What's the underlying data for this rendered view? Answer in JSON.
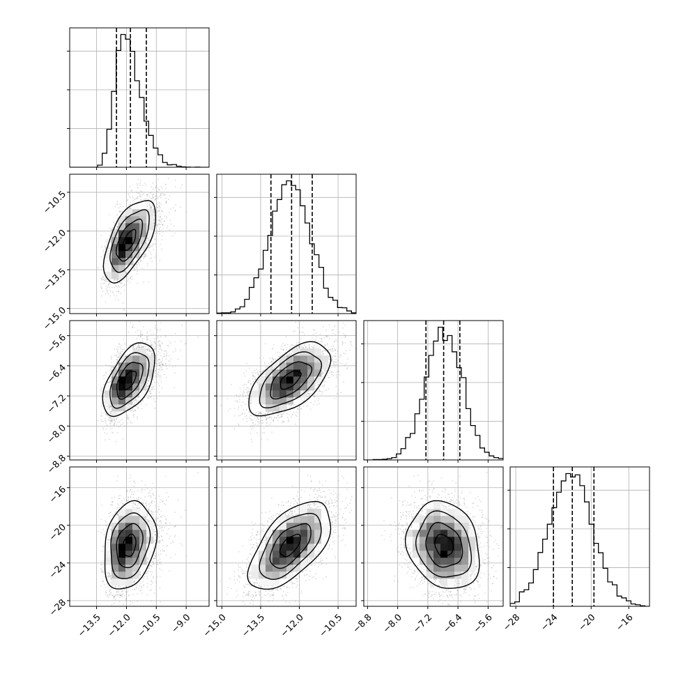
{
  "chart_data": {
    "type": "corner",
    "params": [
      {
        "range": [
          -14.85,
          -7.85
        ],
        "ticks": [
          -13.5,
          -12.0,
          -10.5,
          -9.0
        ],
        "tick_labels": [
          "−13.5",
          "−12.0",
          "−10.5",
          "−9.0"
        ],
        "mean": -11.85,
        "sd": 0.65,
        "skew": 0.7,
        "quantiles": [
          -12.5,
          -11.8,
          -11.0
        ]
      },
      {
        "range": [
          -15.2,
          -9.8
        ],
        "ticks": [
          -15.0,
          -13.5,
          -12.0,
          -10.5
        ],
        "tick_labels": [
          "−15.0",
          "−13.5",
          "−12.0",
          "−10.5"
        ],
        "mean": -12.35,
        "sd": 0.8,
        "skew": 0,
        "quantiles": [
          -13.1,
          -12.3,
          -11.5
        ]
      },
      {
        "range": [
          -8.9,
          -5.2
        ],
        "ticks": [
          -8.8,
          -8.0,
          -7.2,
          -6.4,
          -5.6
        ],
        "tick_labels": [
          "−8.8",
          "−8.0",
          "−7.2",
          "−6.4",
          "−5.6"
        ],
        "mean": -6.78,
        "sd": 0.48,
        "skew": 0,
        "quantiles": [
          -7.25,
          -6.78,
          -6.35
        ]
      },
      {
        "range": [
          -28.6,
          -13.8
        ],
        "ticks": [
          -28,
          -24,
          -20,
          -16
        ],
        "tick_labels": [
          "−28",
          "−24",
          "−20",
          "−16"
        ],
        "mean": -22.1,
        "sd": 2.3,
        "skew": 0,
        "quantiles": [
          -24.0,
          -22.0,
          -19.7
        ]
      }
    ],
    "correlations": {
      "1-0": 0.62,
      "2-0": 0.55,
      "2-1": 0.6,
      "3-0": 0.25,
      "3-1": 0.6,
      "3-2": -0.15
    },
    "grid": true,
    "histogram_bins": 30
  }
}
